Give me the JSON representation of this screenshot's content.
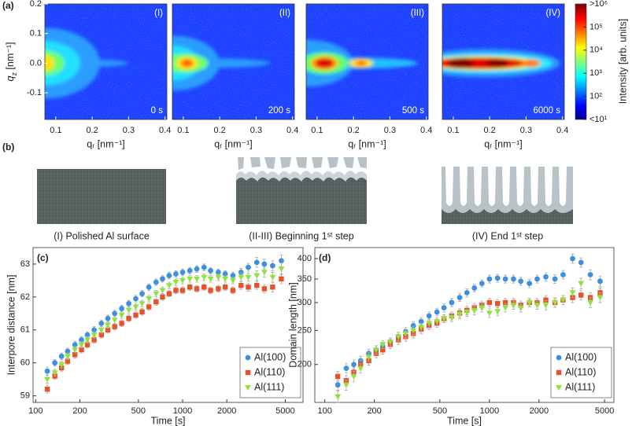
{
  "chart_data": [
    {
      "type": "heatmap",
      "panel": "(a)",
      "label": "(I)",
      "time": "0 s",
      "xlabel": "qᵣ [nm⁻¹]",
      "ylabel": [
        "q",
        "z",
        " [nm⁻¹]"
      ],
      "xlim": [
        0.07,
        0.405
      ],
      "ylim": [
        -0.19,
        0.2
      ],
      "xticks": [
        0.1,
        0.2,
        0.3,
        0.4
      ],
      "yticks": [
        -0.1,
        {
          "value": 0,
          "label": "0.0"
        },
        0.1,
        0.2
      ]
    },
    {
      "type": "heatmap",
      "label": "(II)",
      "time": "200 s",
      "xlabel": "qᵣ [nm⁻¹]",
      "xlim": [
        0.07,
        0.405
      ],
      "ylim": [
        -0.19,
        0.2
      ],
      "xticks": [
        0.1,
        0.2,
        0.3,
        0.4
      ]
    },
    {
      "type": "heatmap",
      "label": "(III)",
      "time": "500 s",
      "xlabel": "qᵣ [nm⁻¹]",
      "xlim": [
        0.07,
        0.405
      ],
      "ylim": [
        -0.19,
        0.2
      ],
      "xticks": [
        0.1,
        0.2,
        0.3,
        0.4
      ]
    },
    {
      "type": "heatmap",
      "label": "(IV)",
      "time": "6000 s",
      "xlabel": "qᵣ [nm⁻¹]",
      "xlim": [
        0.07,
        0.405
      ],
      "ylim": [
        -0.19,
        0.2
      ],
      "xticks": [
        0.1,
        0.2,
        0.3,
        0.4
      ]
    },
    {
      "type": "scatter",
      "panel": "(c)",
      "xlabel": "Time [s]",
      "ylabel": "Interpore distance [nm]",
      "xscale": "log",
      "legend": "lower right",
      "x": [
        120,
        135,
        150,
        165,
        185,
        205,
        225,
        250,
        280,
        310,
        345,
        385,
        430,
        480,
        530,
        590,
        660,
        730,
        810,
        900,
        1000,
        1120,
        1250,
        1400,
        1550,
        1750,
        1950,
        2200,
        2500,
        2800,
        3200,
        3600,
        4100,
        4700
      ],
      "xlim": [
        96,
        6600
      ],
      "xticks": [
        100,
        200,
        500,
        1000,
        2000,
        5000
      ],
      "ylim": [
        58.8,
        63.5
      ],
      "yticks": [
        59,
        60,
        61,
        62,
        63
      ],
      "series": [
        {
          "name": "Al(100)",
          "color": "#3d8fe0",
          "marker": "circle",
          "values": [
            59.75,
            60.0,
            60.2,
            60.35,
            60.55,
            60.7,
            60.85,
            61.0,
            61.2,
            61.35,
            61.5,
            61.65,
            61.8,
            61.95,
            62.1,
            62.3,
            62.45,
            62.55,
            62.65,
            62.7,
            62.75,
            62.8,
            62.85,
            62.9,
            62.8,
            62.75,
            62.7,
            62.65,
            62.75,
            62.9,
            63.05,
            63.0,
            62.95,
            63.1
          ],
          "errors": [
            0.12,
            0.1,
            0.1,
            0.1,
            0.1,
            0.1,
            0.1,
            0.1,
            0.1,
            0.1,
            0.1,
            0.1,
            0.1,
            0.1,
            0.1,
            0.1,
            0.1,
            0.1,
            0.1,
            0.1,
            0.1,
            0.1,
            0.1,
            0.1,
            0.1,
            0.1,
            0.1,
            0.1,
            0.12,
            0.12,
            0.15,
            0.15,
            0.15,
            0.18
          ]
        },
        {
          "name": "Al(110)",
          "color": "#e8512a",
          "marker": "square",
          "values": [
            59.2,
            59.6,
            59.85,
            60.05,
            60.25,
            60.4,
            60.55,
            60.7,
            60.85,
            61.0,
            61.1,
            61.2,
            61.35,
            61.45,
            61.55,
            61.7,
            61.85,
            62.0,
            62.1,
            62.2,
            62.2,
            62.3,
            62.25,
            62.3,
            62.2,
            62.25,
            62.3,
            62.2,
            62.35,
            62.3,
            62.35,
            62.25,
            62.3,
            62.55
          ],
          "errors": [
            0.12,
            0.1,
            0.1,
            0.1,
            0.1,
            0.1,
            0.1,
            0.1,
            0.1,
            0.1,
            0.1,
            0.1,
            0.1,
            0.1,
            0.1,
            0.1,
            0.1,
            0.1,
            0.1,
            0.1,
            0.1,
            0.1,
            0.1,
            0.1,
            0.1,
            0.1,
            0.1,
            0.1,
            0.12,
            0.12,
            0.12,
            0.12,
            0.15,
            0.15
          ]
        },
        {
          "name": "Al(111)",
          "color": "#8fe33a",
          "marker": "triangle-down",
          "values": [
            59.5,
            59.7,
            59.95,
            60.2,
            60.4,
            60.55,
            60.7,
            60.85,
            61.0,
            61.15,
            61.3,
            61.45,
            61.6,
            61.7,
            61.8,
            61.95,
            62.1,
            62.2,
            62.35,
            62.45,
            62.5,
            62.55,
            62.55,
            62.6,
            62.55,
            62.6,
            62.55,
            62.5,
            62.6,
            62.6,
            62.65,
            62.75,
            62.6,
            62.85
          ],
          "errors": [
            0.12,
            0.1,
            0.1,
            0.1,
            0.1,
            0.1,
            0.1,
            0.1,
            0.1,
            0.1,
            0.1,
            0.1,
            0.1,
            0.1,
            0.1,
            0.1,
            0.1,
            0.1,
            0.1,
            0.1,
            0.1,
            0.1,
            0.1,
            0.1,
            0.1,
            0.1,
            0.1,
            0.1,
            0.12,
            0.12,
            0.15,
            0.15,
            0.15,
            0.18
          ]
        }
      ]
    },
    {
      "type": "scatter",
      "panel": "(d)",
      "xlabel": "Time [s]",
      "ylabel": "Domain length [nm]",
      "xscale": "log",
      "yscale": "log",
      "legend": "lower right",
      "x": [
        120,
        135,
        150,
        165,
        185,
        205,
        225,
        250,
        280,
        310,
        345,
        385,
        430,
        480,
        530,
        590,
        660,
        730,
        810,
        900,
        1000,
        1120,
        1250,
        1400,
        1550,
        1750,
        1950,
        2200,
        2500,
        2800,
        3200,
        3600,
        4100,
        4700
      ],
      "xlim": [
        87,
        5700
      ],
      "xticks": [
        100,
        200,
        500,
        1000,
        2000,
        5000
      ],
      "ylim": [
        156,
        430
      ],
      "yticks": [
        200,
        250,
        300,
        350,
        400
      ],
      "series": [
        {
          "name": "Al(100)",
          "color": "#3d8fe0",
          "marker": "circle",
          "values": [
            175,
            195,
            200,
            205,
            215,
            220,
            225,
            232,
            240,
            248,
            258,
            265,
            275,
            282,
            290,
            300,
            310,
            320,
            330,
            340,
            350,
            352,
            350,
            350,
            345,
            340,
            350,
            355,
            350,
            360,
            400,
            390,
            360,
            345
          ],
          "errors": [
            6,
            6,
            6,
            6,
            6,
            6,
            6,
            6,
            7,
            7,
            7,
            7,
            7,
            7,
            8,
            8,
            8,
            8,
            8,
            8,
            9,
            9,
            9,
            9,
            9,
            9,
            9,
            10,
            10,
            10,
            12,
            12,
            12,
            12
          ]
        },
        {
          "name": "Al(110)",
          "color": "#e8512a",
          "marker": "square",
          "values": [
            185,
            180,
            190,
            200,
            205,
            215,
            220,
            228,
            235,
            240,
            245,
            252,
            258,
            262,
            270,
            275,
            280,
            285,
            290,
            295,
            300,
            298,
            300,
            300,
            295,
            300,
            300,
            305,
            300,
            305,
            310,
            315,
            310,
            320
          ],
          "errors": [
            6,
            6,
            6,
            6,
            6,
            6,
            6,
            6,
            7,
            7,
            7,
            7,
            7,
            7,
            7,
            7,
            8,
            8,
            8,
            8,
            8,
            8,
            8,
            8,
            8,
            8,
            8,
            9,
            9,
            9,
            10,
            10,
            10,
            10
          ]
        },
        {
          "name": "Al(111)",
          "color": "#8fe33a",
          "marker": "triangle-down",
          "values": [
            162,
            175,
            185,
            195,
            210,
            220,
            228,
            232,
            240,
            245,
            250,
            255,
            262,
            265,
            270,
            272,
            278,
            282,
            285,
            290,
            280,
            283,
            290,
            295,
            290,
            300,
            295,
            295,
            300,
            305,
            320,
            340,
            300,
            310
          ],
          "errors": [
            6,
            6,
            6,
            6,
            6,
            6,
            6,
            6,
            7,
            7,
            7,
            7,
            7,
            7,
            7,
            7,
            8,
            8,
            8,
            8,
            8,
            8,
            8,
            8,
            8,
            8,
            8,
            9,
            9,
            9,
            10,
            12,
            10,
            10
          ]
        }
      ]
    }
  ],
  "colorbar": {
    "label": "Intensity [arb. units]",
    "scale": "log",
    "lim": [
      10,
      1000000
    ],
    "ticks": [
      {
        "value": 10,
        "label": "<10¹"
      },
      {
        "value": 100,
        "label": "10²"
      },
      {
        "value": 1000,
        "label": "10³"
      },
      {
        "value": 10000,
        "label": "10⁴"
      },
      {
        "value": 100000,
        "label": "10⁵"
      },
      {
        "value": 1000000,
        "label": ">10⁶"
      }
    ]
  },
  "schematic": {
    "panel": "(b)",
    "captions": [
      "(I) Polished Al surface",
      "(II-III) Beginning 1ˢᵗ step",
      "(IV) End 1ˢᵗ step"
    ]
  }
}
